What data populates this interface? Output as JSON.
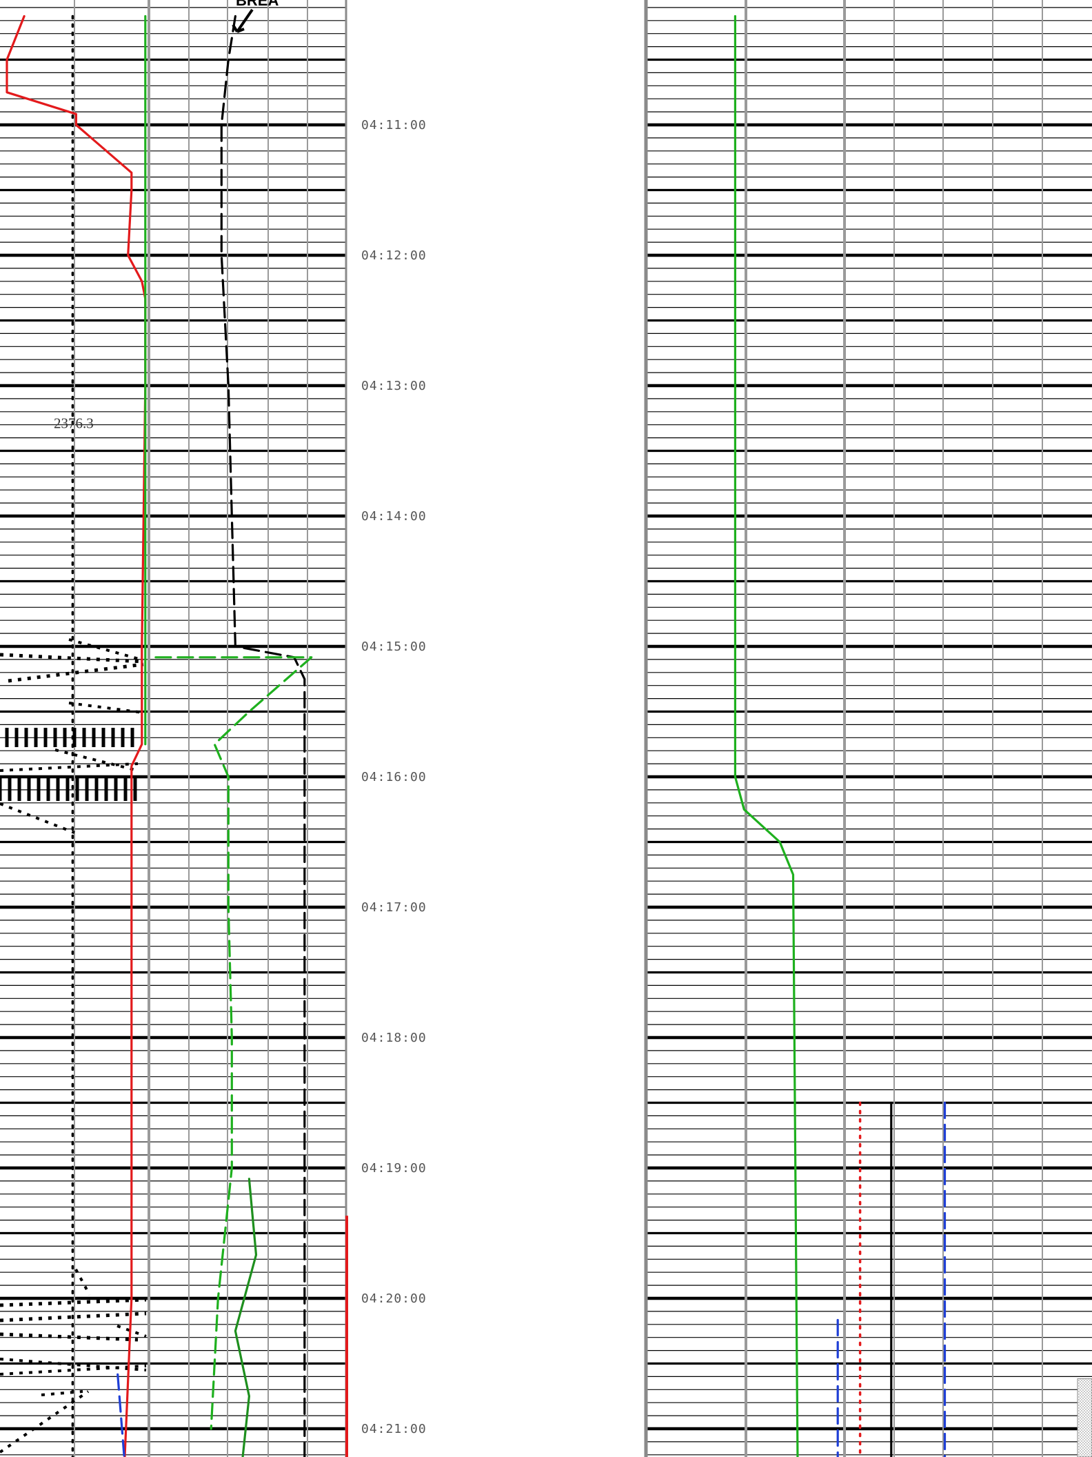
{
  "chart_data": {
    "type": "line",
    "title": "",
    "xlabel": "",
    "ylabel": "",
    "y_axis": "time",
    "time_ticks": [
      "04:11:00",
      "04:12:00",
      "04:13:00",
      "04:14:00",
      "04:15:00",
      "04:16:00",
      "04:17:00",
      "04:18:00",
      "04:19:00",
      "04:20:00",
      "04:21:00"
    ],
    "minor_tick_seconds": 6,
    "annotations": [
      {
        "text": "2376.3",
        "time": "04:13:15"
      },
      {
        "text": "BREA",
        "time": "04:10:30",
        "truncated": true
      }
    ],
    "tracks": [
      {
        "name": "left-track",
        "series": [
          {
            "color": "#e31a1c",
            "style": "solid",
            "points": [
              [
                "04:10:10",
                0.07
              ],
              [
                "04:10:30",
                0.02
              ],
              [
                "04:10:45",
                0.02
              ],
              [
                "04:10:55",
                0.22
              ],
              [
                "04:11:00",
                0.22
              ],
              [
                "04:11:22",
                0.38
              ],
              [
                "04:11:30",
                0.38
              ],
              [
                "04:12:00",
                0.37
              ],
              [
                "04:12:12",
                0.41
              ],
              [
                "04:12:20",
                0.42
              ],
              [
                "04:13:00",
                0.42
              ],
              [
                "04:15:00",
                0.41
              ],
              [
                "04:15:45",
                0.41
              ],
              [
                "04:15:55",
                0.38
              ],
              [
                "04:16:30",
                0.38
              ],
              [
                "04:20:00",
                0.38
              ],
              [
                "04:21:15",
                0.36
              ]
            ]
          },
          {
            "color": "#1eb01e",
            "style": "solid",
            "points": [
              [
                "04:10:10",
                0.42
              ],
              [
                "04:13:00",
                0.42
              ],
              [
                "04:15:45",
                0.42
              ]
            ]
          },
          {
            "color": "#000000",
            "style": "dotted",
            "points": [
              [
                "04:10:10",
                0.21
              ],
              [
                "04:21:15",
                0.21
              ]
            ]
          },
          {
            "color": "#1f3fd6",
            "style": "dashed",
            "points": [
              [
                "04:20:35",
                0.34
              ],
              [
                "04:21:15",
                0.36
              ]
            ]
          }
        ]
      },
      {
        "name": "middle-track",
        "series": [
          {
            "color": "#000000",
            "style": "dashed",
            "points": [
              [
                "04:10:10",
                0.68
              ],
              [
                "04:10:30",
                0.66
              ],
              [
                "04:11:00",
                0.64
              ],
              [
                "04:12:00",
                0.64
              ],
              [
                "04:13:00",
                0.66
              ],
              [
                "04:14:00",
                0.67
              ],
              [
                "04:15:00",
                0.68
              ],
              [
                "04:15:05",
                0.85
              ],
              [
                "04:15:15",
                0.88
              ],
              [
                "04:16:00",
                0.88
              ],
              [
                "04:21:15",
                0.88
              ]
            ]
          },
          {
            "color": "#1eb01e",
            "style": "dashed",
            "points": [
              [
                "04:15:05",
                0.45
              ],
              [
                "04:15:05",
                0.9
              ],
              [
                "04:15:30",
                0.72
              ],
              [
                "04:15:45",
                0.62
              ],
              [
                "04:16:00",
                0.66
              ],
              [
                "04:17:00",
                0.66
              ],
              [
                "04:18:00",
                0.67
              ],
              [
                "04:19:00",
                0.67
              ],
              [
                "04:20:00",
                0.63
              ],
              [
                "04:21:00",
                0.61
              ]
            ]
          },
          {
            "color": "#1e8f1e",
            "style": "solid",
            "points": [
              [
                "04:19:05",
                0.72
              ],
              [
                "04:19:40",
                0.74
              ],
              [
                "04:20:15",
                0.68
              ],
              [
                "04:20:45",
                0.72
              ],
              [
                "04:21:15",
                0.7
              ]
            ]
          }
        ]
      },
      {
        "name": "right-track",
        "series": [
          {
            "color": "#1eb01e",
            "style": "solid",
            "points": [
              [
                "04:10:10",
                0.2
              ],
              [
                "04:16:00",
                0.2
              ],
              [
                "04:16:15",
                0.22
              ],
              [
                "04:16:30",
                0.3
              ],
              [
                "04:16:45",
                0.33
              ],
              [
                "04:21:15",
                0.34
              ]
            ]
          },
          {
            "color": "#1f3fd6",
            "style": "dashed",
            "points": [
              [
                "04:20:10",
                0.43
              ],
              [
                "04:21:15",
                0.43
              ]
            ]
          },
          {
            "color": "#e31a1c",
            "style": "dotted",
            "points": [
              [
                "04:18:30",
                0.48
              ],
              [
                "04:21:15",
                0.48
              ]
            ]
          },
          {
            "color": "#000000",
            "style": "solid",
            "points": [
              [
                "04:18:30",
                0.55
              ],
              [
                "04:21:15",
                0.55
              ]
            ]
          },
          {
            "color": "#1f3fd6",
            "style": "dashed",
            "points": [
              [
                "04:18:30",
                0.67
              ],
              [
                "04:21:15",
                0.67
              ]
            ]
          }
        ]
      }
    ]
  },
  "colors": {
    "red": "#e31a1c",
    "green": "#1eb01e",
    "dark_green": "#1e8f1e",
    "blue": "#1f3fd6",
    "black": "#000000",
    "grid": "#9a9a9a"
  }
}
